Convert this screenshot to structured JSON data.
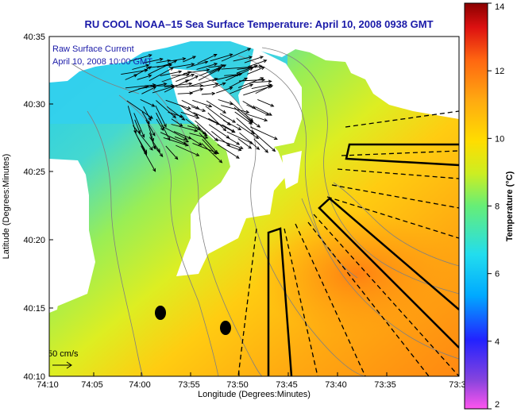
{
  "title": "RU COOL  NOAA–15  Sea Surface Temperature:  April 10, 2008 0938 GMT",
  "overlay": {
    "line1": "Raw Surface Current",
    "line2": "April 10, 2008 10:00 GMT"
  },
  "scale_label": "50 cm/s",
  "x_axis": {
    "label": "Longitude (Degrees:Minutes)",
    "ticks": [
      "74:10",
      "74:05",
      "74:00",
      "73:55",
      "73:50",
      "73:45",
      "73:40",
      "73:35",
      "73:3"
    ]
  },
  "y_axis": {
    "label": "Latitude (Degrees:Minutes)",
    "ticks": [
      "40:35",
      "40:30",
      "40:25",
      "40:20",
      "40:15",
      "40:10"
    ]
  },
  "colorbar": {
    "label": "Temperature (°C)",
    "ticks": [
      "14",
      "12",
      "10",
      "8",
      "6",
      "4",
      "2"
    ],
    "min": 2,
    "max": 14,
    "colors": [
      "#ff55ee",
      "#8844dd",
      "#2222ff",
      "#00aaff",
      "#22ddee",
      "#66ee77",
      "#ccee22",
      "#ffdd00",
      "#ffaa11",
      "#ff6611",
      "#dd1111",
      "#8a0000"
    ]
  },
  "colors": {
    "title": "#1a1aa8",
    "land": "#ffffff",
    "vectors": "#000000",
    "contours": "#808080"
  }
}
